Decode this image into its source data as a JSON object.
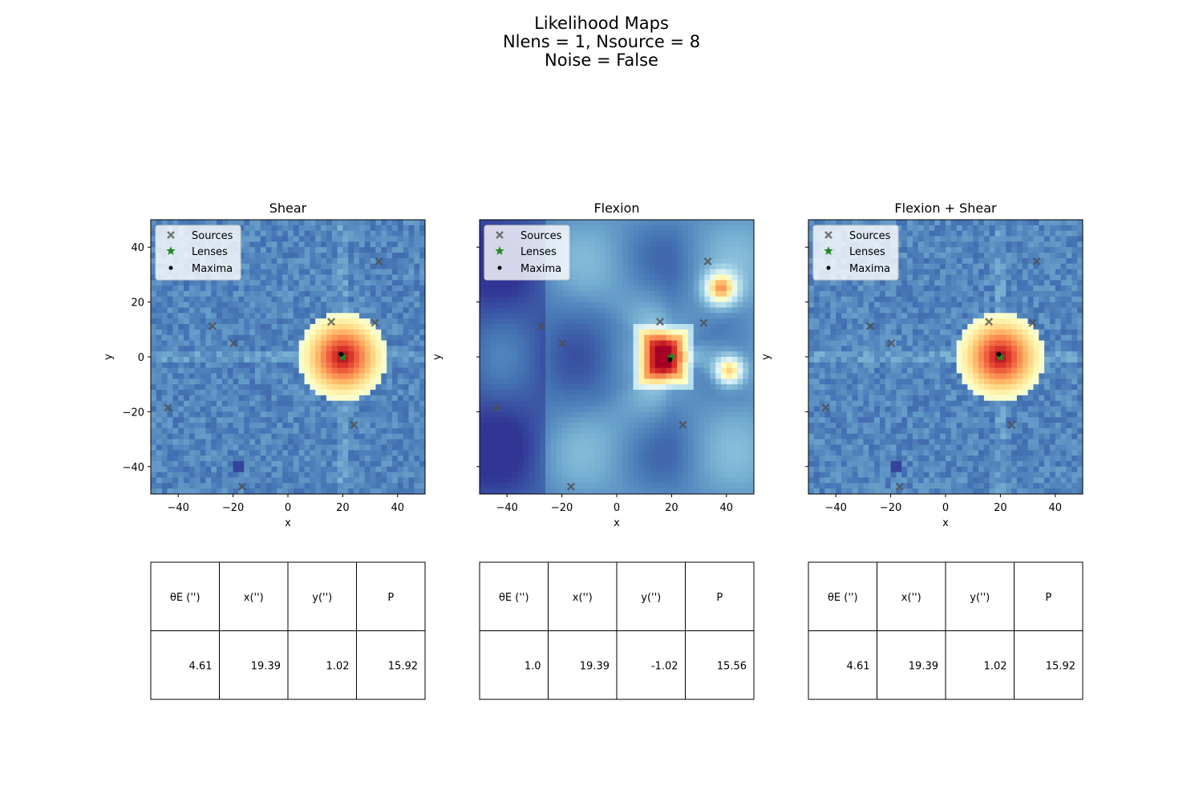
{
  "figure": {
    "title_lines": [
      "Likelihood Maps",
      "Nlens = 1, Nsource = 8",
      "Noise = False"
    ]
  },
  "legend_labels": [
    "Sources",
    "Lenses",
    "Maxima"
  ],
  "colors": {
    "source_marker": "#4d4d4d",
    "lens_marker": "#1f8a1f",
    "maxima_marker": "#000000",
    "colormap": "RdYlBu_r"
  },
  "chart_data": [
    {
      "type": "heatmap",
      "title": "Shear",
      "xlabel": "x",
      "ylabel": "y",
      "xlim": [
        -50,
        50
      ],
      "ylim": [
        -50,
        50
      ],
      "xticks": [
        -40,
        -20,
        0,
        20,
        40
      ],
      "yticks": [
        -40,
        -20,
        0,
        20,
        40
      ],
      "xtick_labels": [
        "−40",
        "−20",
        "0",
        "20",
        "40"
      ],
      "ytick_labels": [
        "−40",
        "−20",
        "0",
        "20",
        "40"
      ],
      "legend_position": "upper-left",
      "sources": [
        {
          "x": -27.5,
          "y": 11.2
        },
        {
          "x": -19.8,
          "y": 5.0
        },
        {
          "x": 15.8,
          "y": 12.8
        },
        {
          "x": 31.7,
          "y": 12.4
        },
        {
          "x": 33.2,
          "y": 34.8
        },
        {
          "x": -43.7,
          "y": -18.5
        },
        {
          "x": 24.1,
          "y": -24.8
        },
        {
          "x": -16.7,
          "y": -47.3
        }
      ],
      "lenses": [
        {
          "x": 20.0,
          "y": 0.0
        }
      ],
      "maxima": [
        {
          "x": 19.4,
          "y": 1.0
        }
      ],
      "table": {
        "headers": [
          "θE ('')",
          "x('')",
          "y('')",
          "P"
        ],
        "values": [
          "4.61",
          "19.39",
          "1.02",
          "15.92"
        ]
      }
    },
    {
      "type": "heatmap",
      "title": "Flexion",
      "xlabel": "x",
      "ylabel": "y",
      "xlim": [
        -50,
        50
      ],
      "ylim": [
        -50,
        50
      ],
      "xticks": [
        -40,
        -20,
        0,
        20,
        40
      ],
      "yticks": [
        -40,
        -20,
        0,
        20,
        40
      ],
      "xtick_labels": [
        "−40",
        "−20",
        "0",
        "20",
        "40"
      ],
      "ytick_labels": [
        "",
        "",
        "",
        "",
        ""
      ],
      "legend_position": "upper-left",
      "sources": [
        {
          "x": -27.5,
          "y": 11.2
        },
        {
          "x": -19.8,
          "y": 5.0
        },
        {
          "x": 15.8,
          "y": 12.8
        },
        {
          "x": 31.7,
          "y": 12.4
        },
        {
          "x": 33.2,
          "y": 34.8
        },
        {
          "x": -43.7,
          "y": -18.5
        },
        {
          "x": 24.1,
          "y": -24.8
        },
        {
          "x": -16.7,
          "y": -47.3
        }
      ],
      "lenses": [
        {
          "x": 20.0,
          "y": 0.0
        }
      ],
      "maxima": [
        {
          "x": 19.4,
          "y": -1.0
        }
      ],
      "table": {
        "headers": [
          "θE ('')",
          "x('')",
          "y('')",
          "P"
        ],
        "values": [
          "1.0",
          "19.39",
          "-1.02",
          "15.56"
        ]
      }
    },
    {
      "type": "heatmap",
      "title": "Flexion + Shear",
      "xlabel": "x",
      "ylabel": "y",
      "xlim": [
        -50,
        50
      ],
      "ylim": [
        -50,
        50
      ],
      "xticks": [
        -40,
        -20,
        0,
        20,
        40
      ],
      "yticks": [
        -40,
        -20,
        0,
        20,
        40
      ],
      "xtick_labels": [
        "−40",
        "−20",
        "0",
        "20",
        "40"
      ],
      "ytick_labels": [
        "",
        "",
        "",
        "",
        ""
      ],
      "legend_position": "upper-left",
      "sources": [
        {
          "x": -27.5,
          "y": 11.2
        },
        {
          "x": -19.8,
          "y": 5.0
        },
        {
          "x": 15.8,
          "y": 12.8
        },
        {
          "x": 31.7,
          "y": 12.4
        },
        {
          "x": 33.2,
          "y": 34.8
        },
        {
          "x": -43.7,
          "y": -18.5
        },
        {
          "x": 24.1,
          "y": -24.8
        },
        {
          "x": -16.7,
          "y": -47.3
        }
      ],
      "lenses": [
        {
          "x": 20.0,
          "y": 0.0
        }
      ],
      "maxima": [
        {
          "x": 19.4,
          "y": 1.0
        }
      ],
      "table": {
        "headers": [
          "θE ('')",
          "x('')",
          "y('')",
          "P"
        ],
        "values": [
          "4.61",
          "19.39",
          "1.02",
          "15.92"
        ]
      }
    }
  ]
}
